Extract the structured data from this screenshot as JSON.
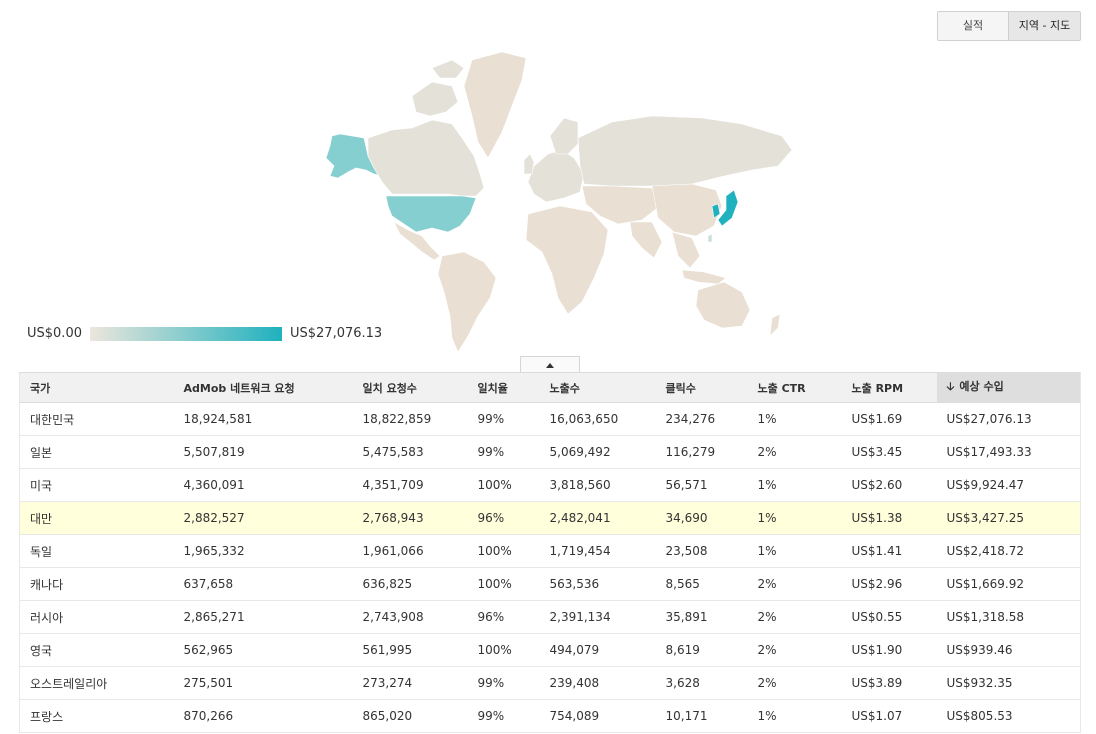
{
  "view_toggle": {
    "performance_label": "실적",
    "geo_map_label": "지역 - 지도"
  },
  "legend": {
    "min_label": "US$0.00",
    "max_label": "US$27,076.13",
    "min_color": "#ece6dc",
    "max_color": "#1fb1be"
  },
  "map_colors": {
    "land_default": "#e9dfd3",
    "land_neutral": "#e3e1d8",
    "high": "#1fb1be",
    "mid": "#86cfd0",
    "borders": "#ffffff"
  },
  "table": {
    "columns": [
      "국가",
      "AdMob 네트워크 요청",
      "일치 요청수",
      "일치율",
      "노출수",
      "클릭수",
      "노출 CTR",
      "노출 RPM",
      "예상 수입"
    ],
    "sort_arrow": "🡣",
    "rows": [
      [
        "대한민국",
        "18,924,581",
        "18,822,859",
        "99%",
        "16,063,650",
        "234,276",
        "1%",
        "US$1.69",
        "US$27,076.13"
      ],
      [
        "일본",
        "5,507,819",
        "5,475,583",
        "99%",
        "5,069,492",
        "116,279",
        "2%",
        "US$3.45",
        "US$17,493.33"
      ],
      [
        "미국",
        "4,360,091",
        "4,351,709",
        "100%",
        "3,818,560",
        "56,571",
        "1%",
        "US$2.60",
        "US$9,924.47"
      ],
      [
        "대만",
        "2,882,527",
        "2,768,943",
        "96%",
        "2,482,041",
        "34,690",
        "1%",
        "US$1.38",
        "US$3,427.25"
      ],
      [
        "독일",
        "1,965,332",
        "1,961,066",
        "100%",
        "1,719,454",
        "23,508",
        "1%",
        "US$1.41",
        "US$2,418.72"
      ],
      [
        "캐나다",
        "637,658",
        "636,825",
        "100%",
        "563,536",
        "8,565",
        "2%",
        "US$2.96",
        "US$1,669.92"
      ],
      [
        "러시아",
        "2,865,271",
        "2,743,908",
        "96%",
        "2,391,134",
        "35,891",
        "2%",
        "US$0.55",
        "US$1,318.58"
      ],
      [
        "영국",
        "562,965",
        "561,995",
        "100%",
        "494,079",
        "8,619",
        "2%",
        "US$1.90",
        "US$939.46"
      ],
      [
        "오스트레일리아",
        "275,501",
        "273,274",
        "99%",
        "239,408",
        "3,628",
        "2%",
        "US$3.89",
        "US$932.35"
      ],
      [
        "프랑스",
        "870,266",
        "865,020",
        "99%",
        "754,089",
        "10,171",
        "1%",
        "US$1.07",
        "US$805.53"
      ]
    ],
    "highlighted_row": 3
  }
}
